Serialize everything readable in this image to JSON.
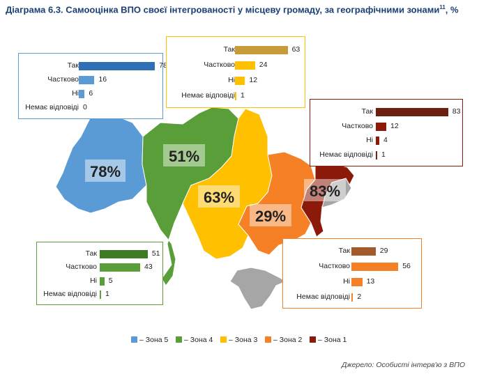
{
  "title": "Діаграма 6.3. Самооцінка ВПО своєї інтегрованості у місцеву громаду, за географічними зонами",
  "title_sup": "11",
  "title_suffix": ", %",
  "source": "Джерело: Особисті інтерв'ю з ВПО",
  "colors": {
    "zone5": "#5b9bd5",
    "zone4": "#5a9e3a",
    "zone3": "#ffc000",
    "zone2": "#f58025",
    "zone1": "#8b1a0a",
    "occupied": "#a6a6a6",
    "zone5_dark": "#2e6fb5",
    "zone4_dark": "#3f7a25",
    "zone3_dark": "#c79a3a",
    "zone2_dark": "#a35a2a",
    "zone1_dark": "#6b2010"
  },
  "map_labels": {
    "zone5": "78%",
    "zone4": "51%",
    "zone3": "63%",
    "zone2": "29%",
    "zone1": "83%"
  },
  "legend": [
    {
      "zone": "zone5",
      "label": "– Зона 5"
    },
    {
      "zone": "zone4",
      "label": "– Зона 4"
    },
    {
      "zone": "zone3",
      "label": "– Зона 3"
    },
    {
      "zone": "zone2",
      "label": "– Зона 2"
    },
    {
      "zone": "zone1",
      "label": "– Зона 1"
    }
  ],
  "chart_data": {
    "type": "bar",
    "categories": [
      "Так",
      "Частково",
      "Ні",
      "Немає відповіді"
    ],
    "series": [
      {
        "name": "Зона 5",
        "values": [
          78,
          16,
          6,
          0
        ]
      },
      {
        "name": "Зона 4",
        "values": [
          51,
          43,
          5,
          1
        ]
      },
      {
        "name": "Зона 3",
        "values": [
          63,
          24,
          12,
          1
        ]
      },
      {
        "name": "Зона 2",
        "values": [
          29,
          56,
          13,
          2
        ]
      },
      {
        "name": "Зона 1",
        "values": [
          83,
          12,
          4,
          1
        ]
      }
    ],
    "legend_placement": "bottom",
    "grid": false
  }
}
